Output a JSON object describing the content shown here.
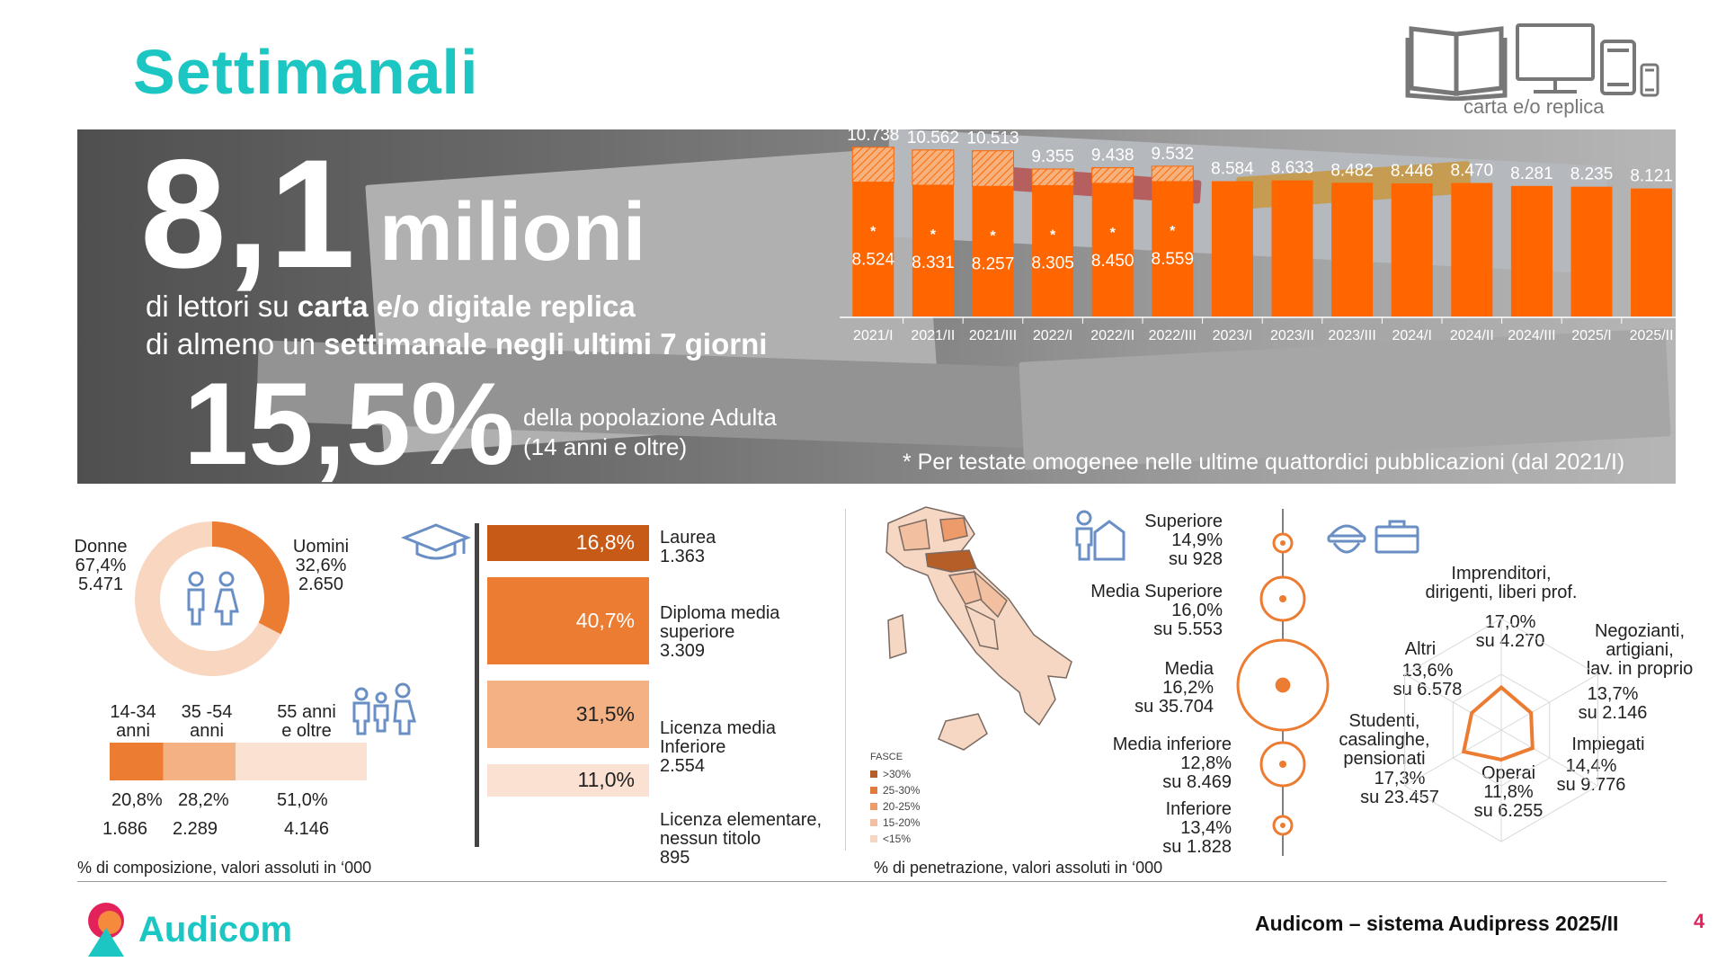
{
  "title": "Settimanali",
  "device_caption": "carta e/o replica",
  "icons": [
    "book-icon",
    "monitor-icon",
    "tablet-icon",
    "phone-icon",
    "mortarboard-icon",
    "family-icon",
    "person-home-icon",
    "worker-icon",
    "briefcase-icon",
    "couple-icon"
  ],
  "colors": {
    "accent": "#1cc6c2",
    "bar": "#ff6600",
    "bar_hatch": "#f3a36a",
    "edu1": "#c65a16",
    "edu2": "#ec7c32",
    "edu3": "#f3b184",
    "edu4": "#fbe1d2",
    "brand_pink": "#e3215b"
  },
  "hero": {
    "big_number": "8,1",
    "big_unit": "milioni",
    "line1_a": "di lettori su ",
    "line1_b": "carta e/o digitale replica",
    "line2_a": "di almeno un ",
    "line2_b": "settimanale negli ultimi 7 giorni",
    "pct": "15,5%",
    "pct_sub1": "della popolazione Adulta",
    "pct_sub2": "(14 anni e oltre)",
    "footnote": "* Per testate omogenee nelle ultime quattordici pubblicazioni (dal 2021/I)"
  },
  "chart_data": [
    {
      "type": "bar",
      "categories": [
        "2021/I",
        "2021/II",
        "2021/III",
        "2022/I",
        "2022/II",
        "2022/III",
        "2023/I",
        "2023/II",
        "2023/III",
        "2024/I",
        "2024/II",
        "2024/III",
        "2025/I",
        "2025/II"
      ],
      "series": [
        {
          "values": [
            10738,
            10562,
            10513,
            9355,
            9438,
            9532,
            8584,
            8633,
            8482,
            8446,
            8470,
            8281,
            8235,
            8121
          ]
        },
        {
          "values": [
            8524,
            8331,
            8257,
            8305,
            8450,
            8559,
            null,
            null,
            null,
            null,
            null,
            null,
            null,
            null
          ]
        }
      ],
      "total_labels": [
        "10.738",
        "10.562",
        "10.513",
        "9.355",
        "9.438",
        "9.532",
        "8.584",
        "8.633",
        "8.482",
        "8.446",
        "8.470",
        "8.281",
        "8.235",
        "8.121"
      ],
      "homog_labels": [
        "8.524",
        "8.331",
        "8.257",
        "8.305",
        "8.450",
        "8.559"
      ],
      "marker": "*",
      "ylim": [
        0,
        11500
      ]
    },
    {
      "type": "pie",
      "categories": [
        "Donne",
        "Uomini"
      ],
      "values": [
        67.4,
        32.6
      ],
      "pct_labels": [
        "67,4%",
        "32,6%"
      ],
      "abs_labels": [
        "5.471",
        "2.650"
      ]
    },
    {
      "type": "bar",
      "orientation": "stacked-horizontal",
      "categories": [
        "14-34 anni",
        "35 -54 anni",
        "55 anni e oltre"
      ],
      "values": [
        20.8,
        28.2,
        51.0
      ],
      "pct_labels": [
        "20,8%",
        "28,2%",
        "51,0%"
      ],
      "abs_labels": [
        "1.686",
        "2.289",
        "4.146"
      ]
    },
    {
      "type": "bar",
      "orientation": "horizontal",
      "categories": [
        "Laurea",
        "Diploma media superiore",
        "Licenza media Inferiore",
        "Licenza elementare, nessun titolo"
      ],
      "values": [
        16.8,
        40.7,
        31.5,
        11.0
      ],
      "pct_labels": [
        "16,8%",
        "40,7%",
        "31,5%",
        "11,0%"
      ],
      "abs_labels": [
        "1.363",
        "3.309",
        "2.554",
        "895"
      ]
    },
    {
      "type": "scatter",
      "categories": [
        "Superiore",
        "Media Superiore",
        "Media",
        "Media inferiore",
        "Inferiore"
      ],
      "values": [
        14.9,
        16.0,
        16.2,
        12.8,
        13.4
      ],
      "pct_labels": [
        "14,9%",
        "16,0%",
        "16,2%",
        "12,8%",
        "13,4%"
      ],
      "base_labels": [
        "su 928",
        "su 5.553",
        "su 35.704",
        "su 8.469",
        "su 1.828"
      ]
    },
    {
      "type": "radar",
      "categories": [
        "Imprenditori, dirigenti, liberi prof.",
        "Negozianti, artigiani, lav. in proprio",
        "Impiegati",
        "Operai",
        "Studenti, casalinghe, pensionati",
        "Altri"
      ],
      "values": [
        17.0,
        13.7,
        14.4,
        11.8,
        17.3,
        13.6
      ],
      "pct_labels": [
        "17,0%",
        "13,7%",
        "14,4%",
        "11,8%",
        "17,3%",
        "13,6%"
      ],
      "base_labels": [
        "su 4.270",
        "su 2.146",
        "su 9.776",
        "su 6.255",
        "su 23.457",
        "su 6.578"
      ]
    }
  ],
  "gender": {
    "donne": "Donne",
    "uomini": "Uomini"
  },
  "age_labels": {
    "a1": "14-34",
    "a1b": "anni",
    "a2": "35 -54",
    "a2b": "anni",
    "a3": "55 anni",
    "a3b": "e oltre"
  },
  "edu_labels": {
    "e1": "Laurea",
    "e2a": "Diploma media",
    "e2b": "superiore",
    "e3a": "Licenza media",
    "e3b": "Inferiore",
    "e4a": "Licenza elementare,",
    "e4b": "nessun titolo"
  },
  "class_labels": {
    "c3b": "Superiore"
  },
  "radar_labels": {
    "r1a": "Imprenditori,",
    "r1b": "dirigenti, liberi prof.",
    "r2a": "Negozianti,",
    "r2b": "artigiani,",
    "r2c": "lav. in proprio",
    "r5a": "Studenti,",
    "r5b": "casalinghe,",
    "r5c": "pensionati"
  },
  "map": {
    "legend_title": "FASCE",
    "legend": [
      ">30%",
      "25-30%",
      "20-25%",
      "15-20%",
      "<15%"
    ]
  },
  "source_left": "% di composizione, valori assoluti in ‘000",
  "source_right": "% di penetrazione, valori assoluti in ‘000",
  "brand": "Audicom",
  "footer": "Audicom – sistema Audipress 2025/II",
  "page_number": "4"
}
